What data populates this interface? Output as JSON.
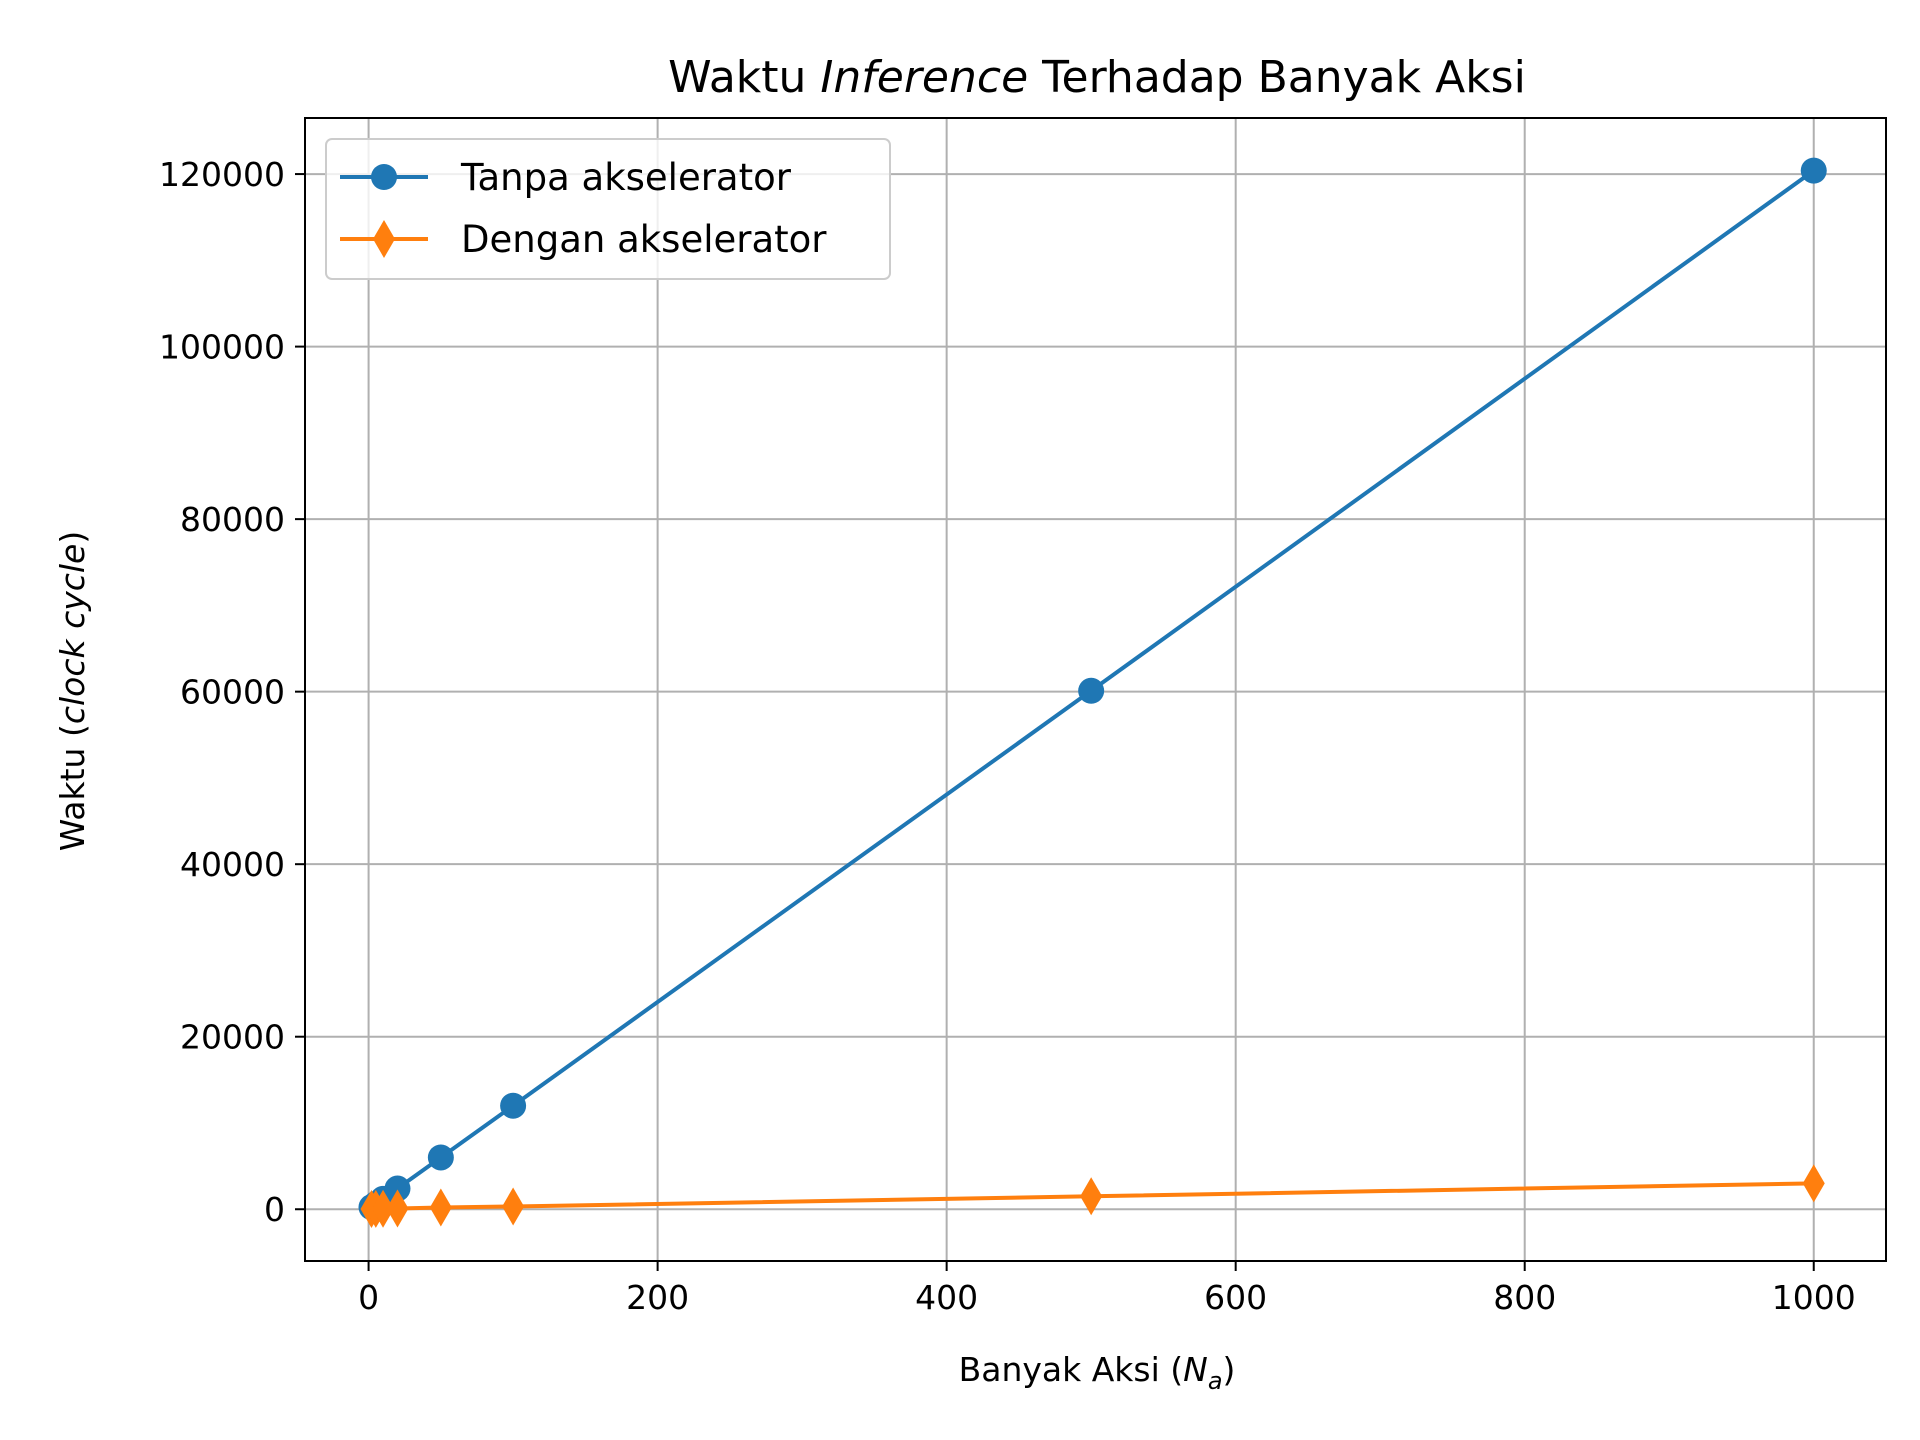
{
  "chart_data": {
    "type": "line",
    "title": {
      "pre": "Waktu ",
      "italic": "Inference",
      "post": " Terhadap Banyak Aksi"
    },
    "xlabel": {
      "pre": "Banyak Aksi (",
      "var": "N",
      "sub": "a",
      "post": ")"
    },
    "ylabel": {
      "pre": "Waktu (",
      "italic": "clock cycle",
      "post": ")"
    },
    "xlim": [
      -44,
      1050
    ],
    "ylim": [
      -6000,
      126500
    ],
    "x_ticks": [
      0,
      200,
      400,
      600,
      800,
      1000
    ],
    "x_tick_labels": [
      "0",
      "200",
      "400",
      "600",
      "800",
      "1000"
    ],
    "y_ticks": [
      0,
      20000,
      40000,
      60000,
      80000,
      100000,
      120000
    ],
    "y_tick_labels": [
      "0",
      "20000",
      "40000",
      "60000",
      "80000",
      "100000",
      "120000"
    ],
    "grid": true,
    "legend_position": "top-left",
    "series": [
      {
        "name": "Tanpa akselerator",
        "color": "#1f77b4",
        "marker": "circle",
        "x": [
          2,
          5,
          10,
          20,
          50,
          100,
          500,
          1000
        ],
        "y": [
          240,
          600,
          1200,
          2400,
          6000,
          12000,
          60100,
          120400
        ]
      },
      {
        "name": "Dengan akselerator",
        "color": "#ff7f0e",
        "marker": "diamond",
        "x": [
          2,
          5,
          10,
          20,
          50,
          100,
          500,
          1000
        ],
        "y": [
          30,
          40,
          50,
          80,
          200,
          320,
          1500,
          3000
        ]
      }
    ]
  }
}
